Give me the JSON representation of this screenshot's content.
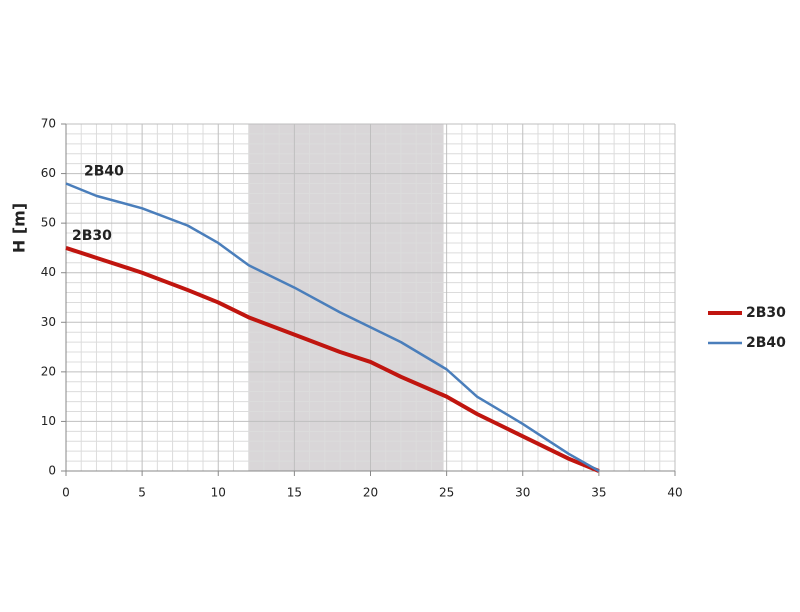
{
  "chart_data": {
    "type": "line",
    "y_label": "H [m]",
    "x": [
      0,
      2,
      5,
      8,
      10,
      12,
      15,
      18,
      20,
      22,
      25,
      27,
      30,
      33,
      35
    ],
    "series": [
      {
        "name": "2B30",
        "color": "#c0150f",
        "values": [
          45,
          43,
          40,
          36.5,
          34,
          31,
          27.5,
          24,
          22,
          19,
          15,
          11.5,
          7,
          2.5,
          0
        ]
      },
      {
        "name": "2B40",
        "color": "#4a7ebb",
        "values": [
          58,
          55.5,
          53,
          49.5,
          46,
          41.5,
          37,
          32,
          29,
          26,
          20.5,
          15,
          9.5,
          3.5,
          0
        ]
      }
    ],
    "xlim": [
      0,
      40
    ],
    "xticks": [
      0,
      5,
      10,
      15,
      20,
      25,
      30,
      35,
      40
    ],
    "ylim": [
      0,
      70
    ],
    "yticks": [
      0,
      10,
      20,
      30,
      40,
      50,
      60,
      70
    ],
    "grid": true,
    "minor_grid_divisions": 5,
    "shaded_range": [
      12,
      24.8
    ],
    "shaded_color": "#d9d6d8",
    "legend": "right"
  }
}
